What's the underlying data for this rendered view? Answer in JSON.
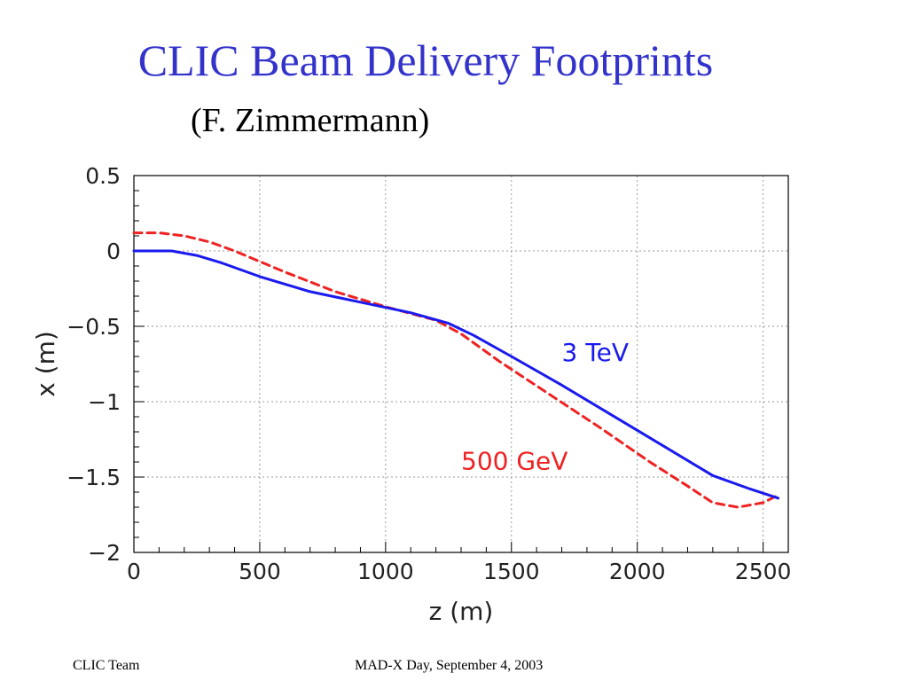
{
  "slide": {
    "title": "CLIC Beam Delivery Footprints",
    "subtitle": "(F. Zimmermann)",
    "footer_left": "CLIC Team",
    "footer_center": "MAD-X Day, September 4, 2003"
  },
  "chart_data": {
    "type": "line",
    "title": "",
    "xlabel": "z (m)",
    "ylabel": "x (m)",
    "xlim": [
      0,
      2600
    ],
    "ylim": [
      -2,
      0.5
    ],
    "xticks": [
      0,
      500,
      1000,
      1500,
      2000,
      2500
    ],
    "yticks": [
      0.5,
      0,
      -0.5,
      -1,
      -1.5,
      -2
    ],
    "ytick_labels": [
      "0.5",
      "0",
      "−0.5",
      "−1",
      "−1.5",
      "−2"
    ],
    "xtick_labels": [
      "0",
      "500",
      "1000",
      "1500",
      "2000",
      "2500"
    ],
    "grid": true,
    "series": [
      {
        "name": "3 TeV",
        "color": "#1a1aee",
        "style": "solid",
        "label_at": [
          1700,
          -0.73
        ],
        "x": [
          0,
          150,
          250,
          350,
          500,
          700,
          900,
          1100,
          1250,
          1350,
          1500,
          1700,
          1900,
          2100,
          2300,
          2450,
          2560
        ],
        "y": [
          0,
          0,
          -0.03,
          -0.08,
          -0.17,
          -0.27,
          -0.34,
          -0.41,
          -0.48,
          -0.56,
          -0.7,
          -0.89,
          -1.09,
          -1.29,
          -1.49,
          -1.58,
          -1.64
        ]
      },
      {
        "name": "500 GeV",
        "color": "#ee2222",
        "style": "dashed",
        "label_at": [
          1300,
          -1.45
        ],
        "x": [
          0,
          100,
          200,
          300,
          400,
          600,
          800,
          1000,
          1200,
          1300,
          1450,
          1650,
          1850,
          2050,
          2200,
          2300,
          2400,
          2500,
          2560
        ],
        "y": [
          0.12,
          0.12,
          0.1,
          0.06,
          0.0,
          -0.14,
          -0.27,
          -0.37,
          -0.46,
          -0.55,
          -0.73,
          -0.95,
          -1.17,
          -1.4,
          -1.56,
          -1.67,
          -1.7,
          -1.67,
          -1.62
        ]
      }
    ]
  }
}
